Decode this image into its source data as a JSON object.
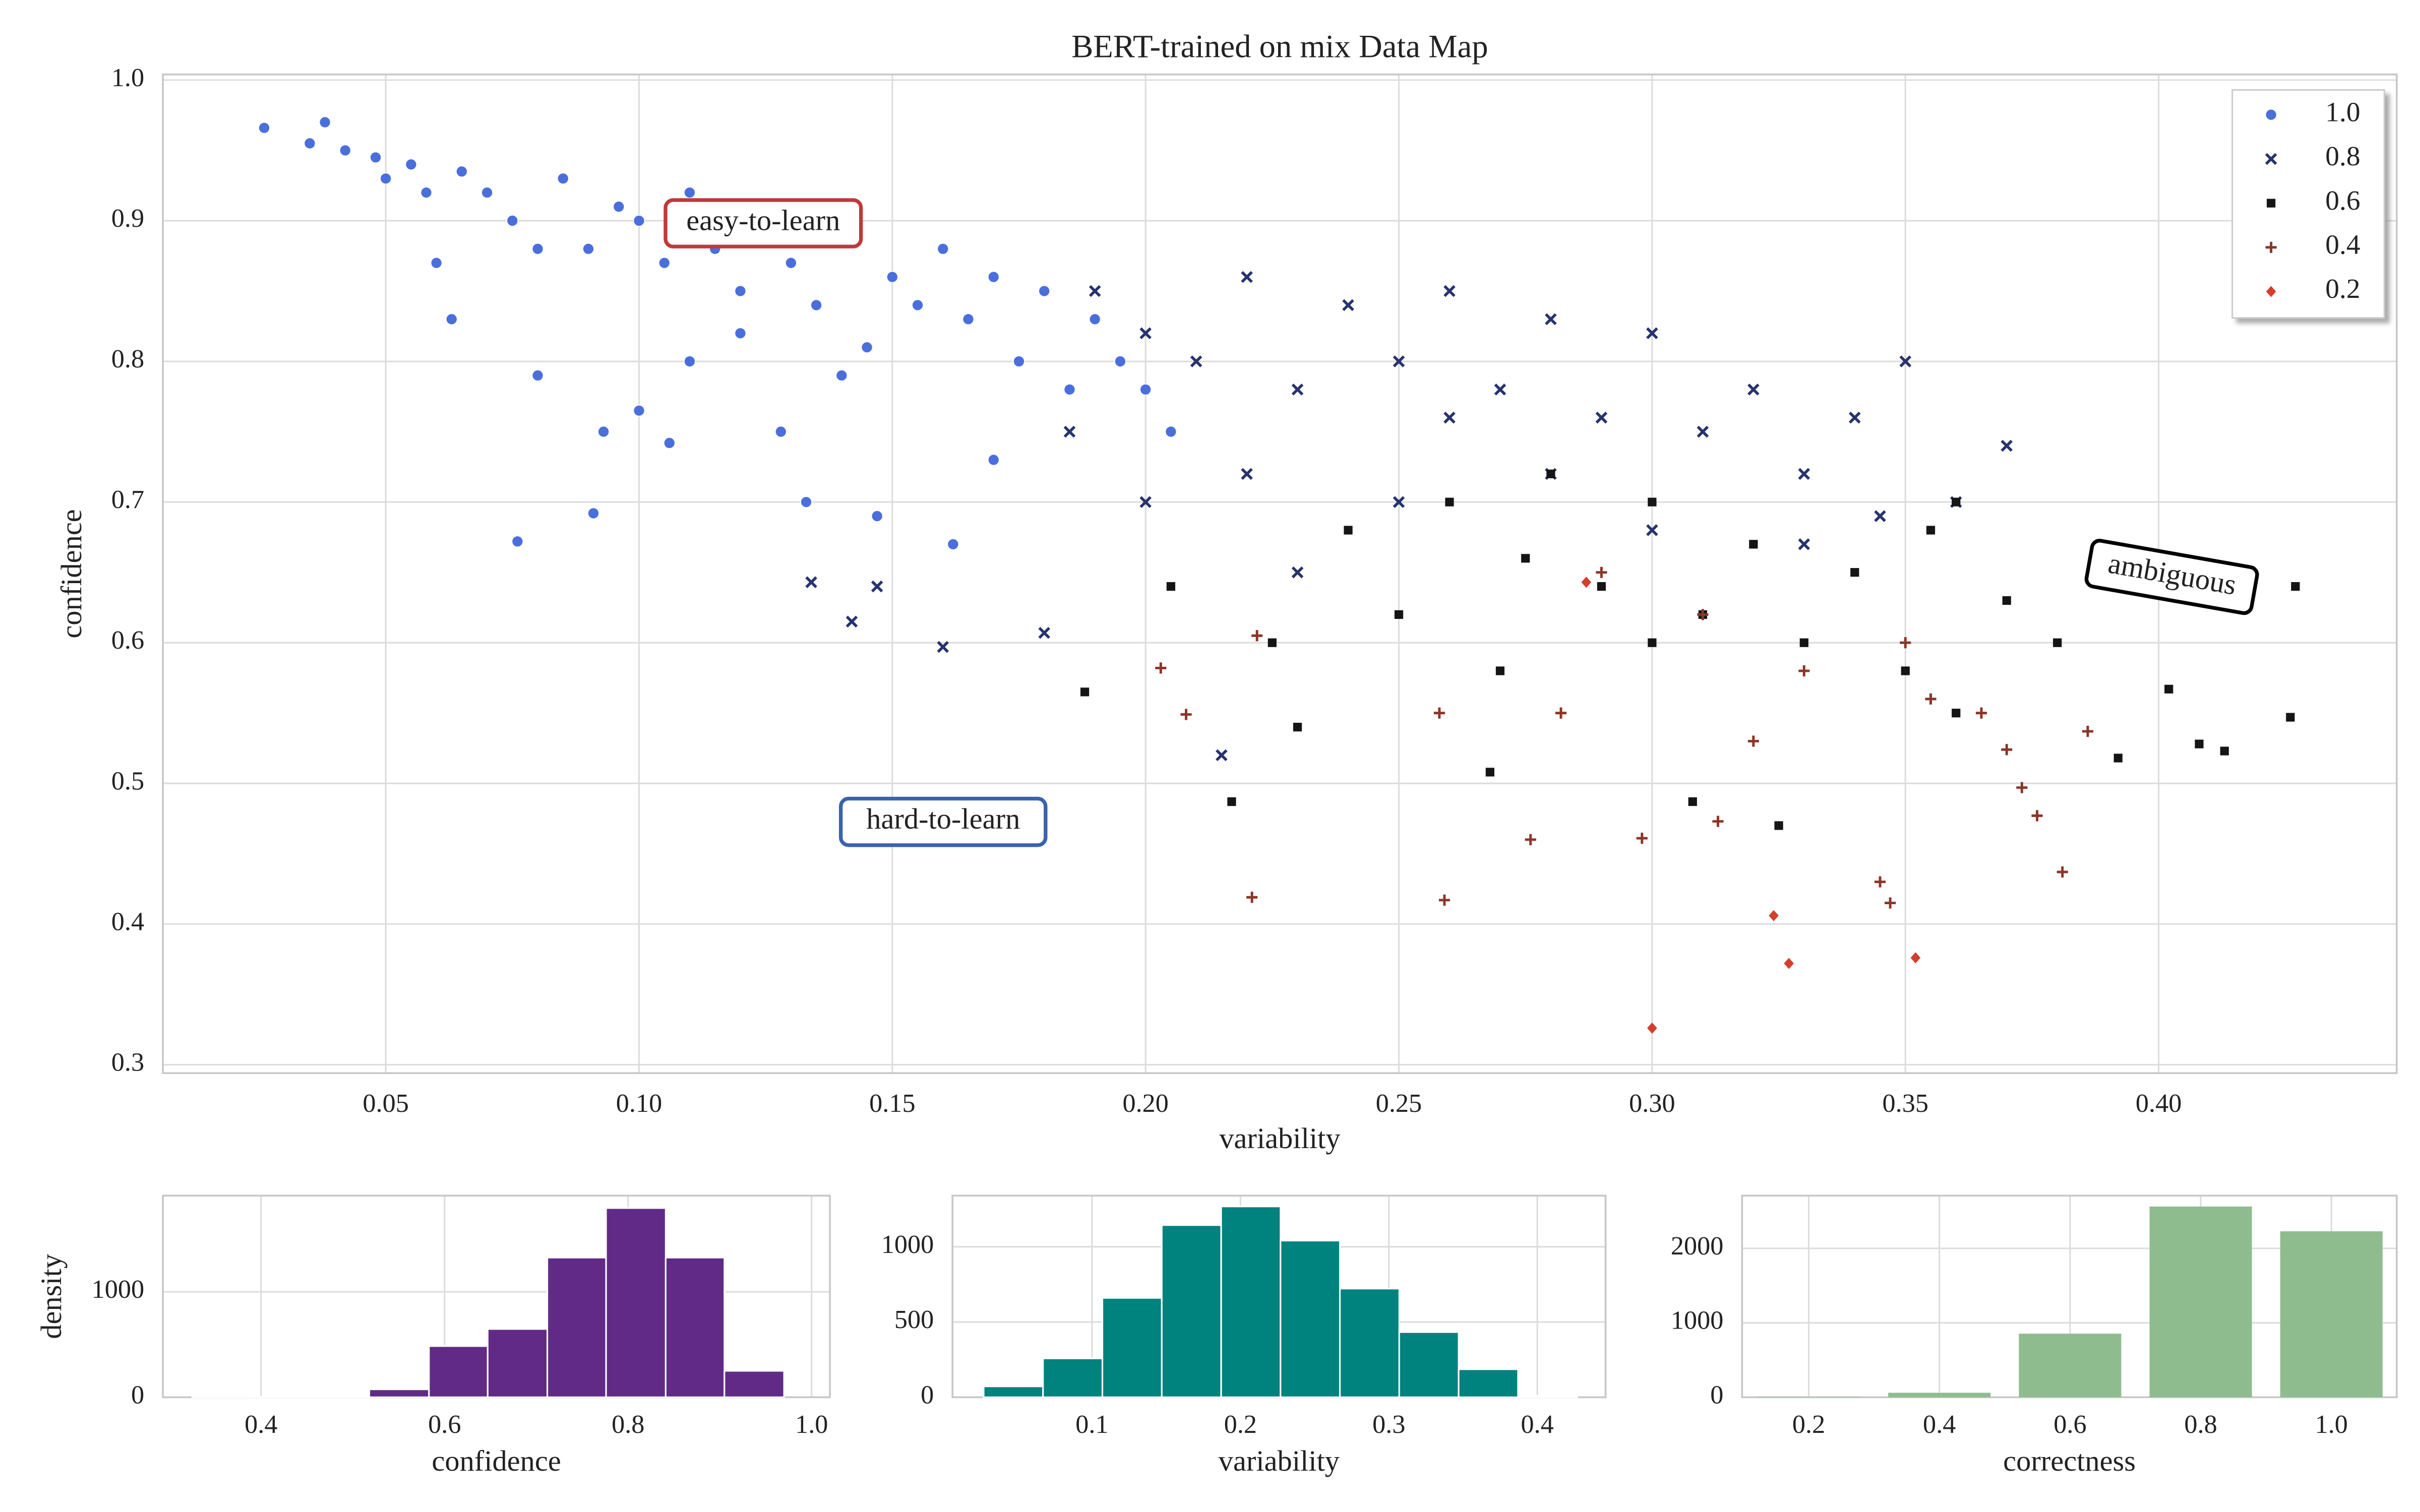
{
  "chart_data": [
    {
      "type": "scatter",
      "title": "BERT-trained on mix Data Map",
      "xlabel": "variability",
      "ylabel": "confidence",
      "xlim": [
        0.006,
        0.447
      ],
      "ylim": [
        0.294,
        1.004
      ],
      "xticks": [
        0.05,
        {
          "value": 0.1,
          "label": "0.10"
        },
        0.15,
        {
          "value": 0.2,
          "label": "0.20"
        },
        0.25,
        {
          "value": 0.3,
          "label": "0.30"
        },
        0.35,
        {
          "value": 0.4,
          "label": "0.40"
        }
      ],
      "yticks": [
        0.3,
        0.4,
        0.5,
        0.6,
        0.7,
        0.8,
        0.9,
        {
          "value": 1,
          "label": "1.0"
        }
      ],
      "grid": true,
      "legend": "upper right",
      "annotations": [
        "easy-to-learn",
        "hard-to-learn",
        "ambiguous"
      ],
      "series": [
        {
          "name": "1.0",
          "color": "#4a6fdc",
          "marker": "circle",
          "x": [
            0.026,
            0.035,
            0.038,
            0.042,
            0.048,
            0.05,
            0.055,
            0.058,
            0.06,
            0.063,
            0.065,
            0.07,
            0.075,
            0.076,
            0.08,
            0.085,
            0.09,
            0.091,
            0.093,
            0.096,
            0.1,
            0.1,
            0.105,
            0.106,
            0.11,
            0.115,
            0.12,
            0.125,
            0.13,
            0.133,
            0.135,
            0.14,
            0.145,
            0.147,
            0.15,
            0.155,
            0.16,
            0.162,
            0.165,
            0.17,
            0.175,
            0.18,
            0.185,
            0.19,
            0.195,
            0.2,
            0.205,
            0.14,
            0.12,
            0.08,
            0.11,
            0.128,
            0.17
          ],
          "y": [
            0.966,
            0.955,
            0.97,
            0.95,
            0.945,
            0.93,
            0.94,
            0.92,
            0.87,
            0.83,
            0.935,
            0.92,
            0.9,
            0.672,
            0.79,
            0.93,
            0.88,
            0.692,
            0.75,
            0.91,
            0.765,
            0.9,
            0.87,
            0.742,
            0.92,
            0.88,
            0.85,
            0.9,
            0.87,
            0.7,
            0.84,
            0.89,
            0.81,
            0.69,
            0.86,
            0.84,
            0.88,
            0.67,
            0.83,
            0.86,
            0.8,
            0.85,
            0.78,
            0.83,
            0.8,
            0.78,
            0.75,
            0.79,
            0.82,
            0.88,
            0.8,
            0.75,
            0.73
          ]
        },
        {
          "name": "0.8",
          "color": "#26336e",
          "marker": "x",
          "x": [
            0.134,
            0.142,
            0.147,
            0.16,
            0.18,
            0.185,
            0.19,
            0.2,
            0.21,
            0.215,
            0.22,
            0.23,
            0.24,
            0.25,
            0.26,
            0.27,
            0.28,
            0.29,
            0.3,
            0.31,
            0.32,
            0.33,
            0.34,
            0.35,
            0.36,
            0.37,
            0.22,
            0.25,
            0.28,
            0.3,
            0.33,
            0.23,
            0.26,
            0.2,
            0.345
          ],
          "y": [
            0.643,
            0.615,
            0.64,
            0.597,
            0.607,
            0.75,
            0.85,
            0.82,
            0.8,
            0.52,
            0.86,
            0.78,
            0.84,
            0.8,
            0.85,
            0.78,
            0.83,
            0.76,
            0.82,
            0.75,
            0.78,
            0.72,
            0.76,
            0.8,
            0.7,
            0.74,
            0.72,
            0.7,
            0.72,
            0.68,
            0.67,
            0.65,
            0.76,
            0.7,
            0.69
          ]
        },
        {
          "name": "0.6",
          "color": "#151515",
          "marker": "square",
          "x": [
            0.188,
            0.205,
            0.217,
            0.225,
            0.23,
            0.24,
            0.25,
            0.26,
            0.268,
            0.275,
            0.28,
            0.29,
            0.3,
            0.308,
            0.31,
            0.32,
            0.325,
            0.33,
            0.34,
            0.35,
            0.355,
            0.36,
            0.37,
            0.38,
            0.392,
            0.402,
            0.408,
            0.413,
            0.427,
            0.426,
            0.36,
            0.3,
            0.27
          ],
          "y": [
            0.565,
            0.64,
            0.487,
            0.6,
            0.54,
            0.68,
            0.62,
            0.7,
            0.508,
            0.66,
            0.72,
            0.64,
            0.7,
            0.487,
            0.62,
            0.67,
            0.47,
            0.6,
            0.65,
            0.58,
            0.68,
            0.55,
            0.63,
            0.6,
            0.518,
            0.567,
            0.528,
            0.523,
            0.64,
            0.547,
            0.7,
            0.6,
            0.58
          ]
        },
        {
          "name": "0.4",
          "color": "#8b3526",
          "marker": "plus",
          "x": [
            0.203,
            0.208,
            0.221,
            0.222,
            0.258,
            0.259,
            0.276,
            0.282,
            0.29,
            0.298,
            0.31,
            0.313,
            0.32,
            0.33,
            0.345,
            0.347,
            0.35,
            0.355,
            0.365,
            0.373,
            0.376,
            0.381,
            0.386,
            0.37
          ],
          "y": [
            0.582,
            0.549,
            0.419,
            0.605,
            0.55,
            0.417,
            0.46,
            0.55,
            0.65,
            0.461,
            0.62,
            0.473,
            0.53,
            0.58,
            0.43,
            0.415,
            0.6,
            0.56,
            0.55,
            0.497,
            0.477,
            0.437,
            0.537,
            0.524
          ]
        },
        {
          "name": "0.2",
          "color": "#d23f2c",
          "marker": "diamond",
          "x": [
            0.3,
            0.324,
            0.327,
            0.352,
            0.287
          ],
          "y": [
            0.326,
            0.406,
            0.372,
            0.376,
            0.643
          ]
        }
      ]
    },
    {
      "type": "histogram",
      "xlabel": "confidence",
      "ylabel": "density",
      "color": "#612a87",
      "bins": [
        0.325,
        0.389,
        0.454,
        0.518,
        0.583,
        0.647,
        0.712,
        0.776,
        0.841,
        0.905,
        0.97
      ],
      "values": [
        1,
        3,
        10,
        75,
        485,
        647,
        1324,
        1794,
        1324,
        250
      ],
      "xlim": [
        0.293,
        1.02
      ],
      "ylim": [
        0,
        1912
      ],
      "xticks": [
        0.4,
        0.6,
        0.8,
        {
          "value": 1,
          "label": "1.0"
        }
      ],
      "yticks": [
        0,
        1000
      ],
      "grid": true
    },
    {
      "type": "histogram",
      "xlabel": "variability",
      "color": "#00827f",
      "bins": [
        0.027,
        0.067,
        0.107,
        0.147,
        0.187,
        0.227,
        0.267,
        0.307,
        0.347,
        0.387,
        0.427
      ],
      "values": [
        72,
        258,
        660,
        1144,
        1268,
        1041,
        722,
        433,
        186,
        10
      ],
      "xlim": [
        0.006,
        0.446
      ],
      "ylim": [
        0,
        1340
      ],
      "xticks": [
        0.1,
        0.2,
        0.3,
        0.4
      ],
      "yticks": [
        0,
        500,
        1000
      ],
      "grid": true
    },
    {
      "type": "bar",
      "xlabel": "correctness",
      "color": "#8fbc8f",
      "x": [
        0.2,
        0.4,
        0.6,
        0.8,
        1
      ],
      "values": [
        5,
        60,
        854,
        2562,
        2229
      ],
      "xlim": [
        0.098,
        1.1
      ],
      "ylim": [
        0,
        2708
      ],
      "xticks": [
        0.2,
        0.4,
        0.6,
        0.8,
        {
          "value": 1,
          "label": "1.0"
        }
      ],
      "yticks": [
        0,
        1000,
        2000
      ],
      "grid": true
    }
  ]
}
